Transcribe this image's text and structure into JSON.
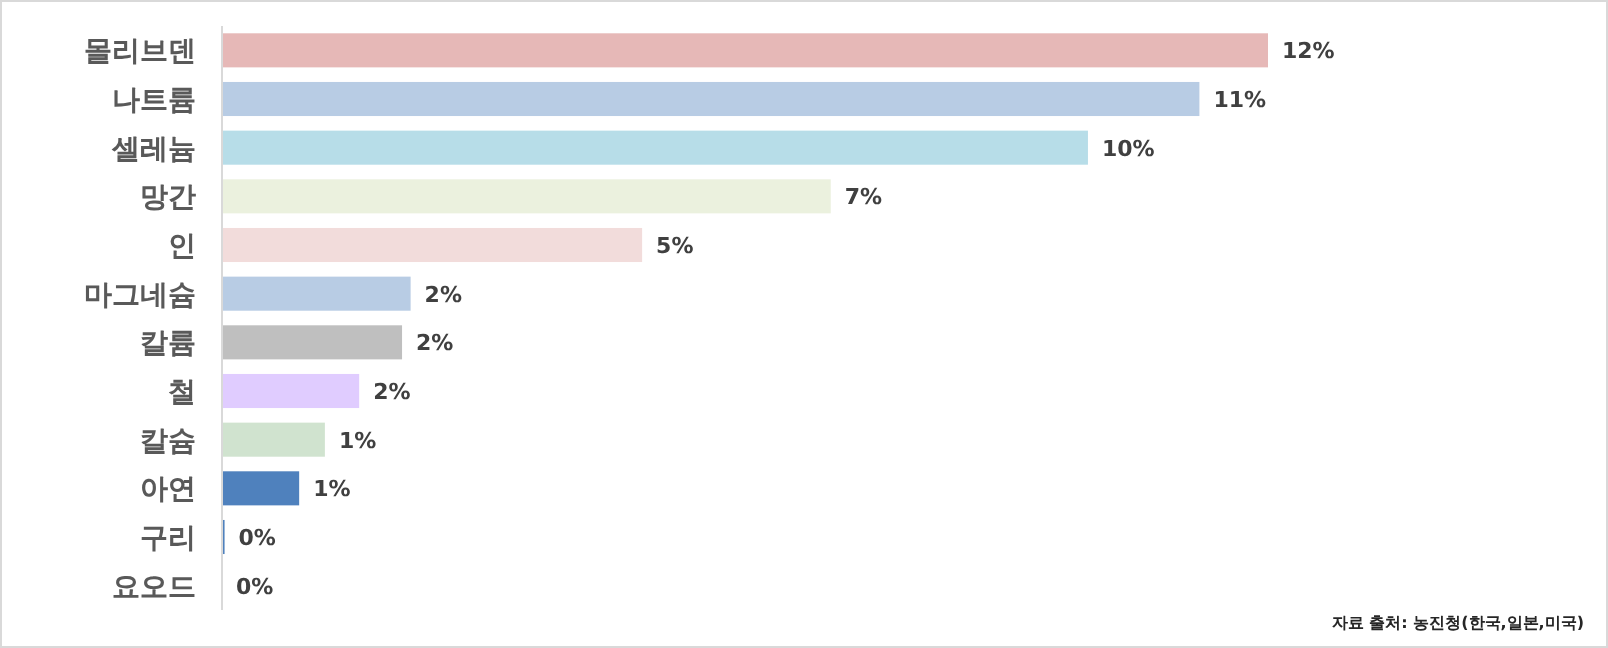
{
  "chart_data": {
    "type": "bar",
    "orientation": "horizontal",
    "categories": [
      "몰리브덴",
      "나트륨",
      "셀레늄",
      "망간",
      "인",
      "마그네슘",
      "칼륨",
      "철",
      "칼슘",
      "아연",
      "구리",
      "요오드"
    ],
    "values": [
      12.2,
      11.4,
      10.1,
      7.1,
      4.9,
      2.2,
      2.1,
      1.6,
      1.2,
      0.9,
      0.03,
      0
    ],
    "colors": [
      "#e6b8b7",
      "#b8cce4",
      "#b7dde8",
      "#ebf1de",
      "#f2dcdb",
      "#b8cce4",
      "#bfbfbf",
      "#e0ccff",
      "#d0e3cf",
      "#4f81bd",
      "#4f81bd",
      "#4f81bd"
    ],
    "value_labels": [
      "12%",
      "11%",
      "10%",
      "7%",
      "5%",
      "2%",
      "2%",
      "2%",
      "1%",
      "1%",
      "0%",
      "0%"
    ],
    "annotations": [
      "자료 출처: 농진청(한국,일본,미국)"
    ]
  }
}
